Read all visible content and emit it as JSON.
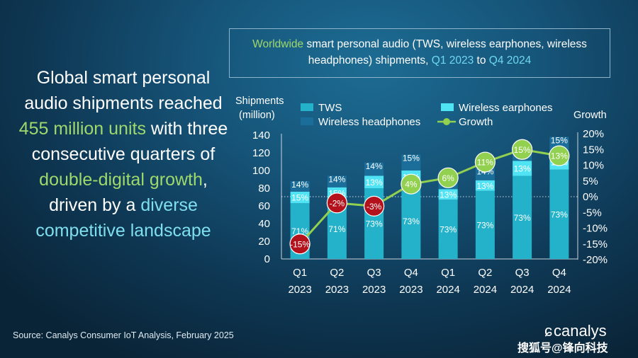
{
  "headline": {
    "p1": "Global smart personal audio shipments reached ",
    "p2": "455 million units",
    "p3": " with three consecutive quarters of ",
    "p4": "double-digital growth",
    "p5": ", driven by a ",
    "p6": "diverse competitive landscape"
  },
  "title": {
    "p1": "Worldwide",
    "p2": " smart personal audio (TWS, wireless earphones, wireless headphones) shipments, ",
    "p3": "Q1 2023",
    "p4": " to ",
    "p5": "Q4 2024"
  },
  "source": "Source: Canalys Consumer IoT Analysis, February 2025",
  "logo": "canalys",
  "watermark": "搜狐号@锋向科技",
  "colors": {
    "tws": "#23b2c9",
    "earphones": "#4fe3f3",
    "headphones": "#1b6e9a",
    "growth": "#92d050",
    "growth_negative": "#b3121c"
  },
  "chart_data": {
    "type": "bar",
    "stacked": true,
    "y_title": [
      "Shipments",
      "(million)"
    ],
    "y2_title": "Growth",
    "ylim": [
      0,
      140
    ],
    "yticks": [
      0,
      20,
      40,
      60,
      80,
      100,
      120,
      140
    ],
    "y2lim": [
      -20,
      20
    ],
    "y2ticks": [
      "-20%",
      "-15%",
      "-10%",
      "-5%",
      "0%",
      "5%",
      "10%",
      "15%",
      "20%"
    ],
    "categories": [
      [
        "Q1",
        "2023"
      ],
      [
        "Q2",
        "2023"
      ],
      [
        "Q3",
        "2023"
      ],
      [
        "Q4",
        "2023"
      ],
      [
        "Q1",
        "2024"
      ],
      [
        "Q2",
        "2024"
      ],
      [
        "Q3",
        "2024"
      ],
      [
        "Q4",
        "2024"
      ]
    ],
    "legend": {
      "tws": "TWS",
      "earphones": "Wireless earphones",
      "headphones": "Wireless headphones",
      "growth": "Growth"
    },
    "series": [
      {
        "key": "tws",
        "name": "TWS",
        "values": [
          63,
          68,
          80,
          86,
          67,
          77,
          94,
          101
        ],
        "labels": [
          "71%",
          "71%",
          "73%",
          "73%",
          "73%",
          "73%",
          "73%",
          "73%"
        ]
      },
      {
        "key": "earphones",
        "name": "Wireless earphones",
        "values": [
          13,
          13,
          14,
          14,
          12,
          12,
          17,
          17
        ],
        "labels": [
          "15%",
          "15%",
          "13%",
          "12%",
          "13%",
          "13%",
          "13%",
          "12%"
        ]
      },
      {
        "key": "headphones",
        "name": "Wireless headphones",
        "values": [
          12,
          13,
          15,
          18,
          13,
          14,
          18,
          20
        ],
        "labels": [
          "14%",
          "14%",
          "14%",
          "15%",
          "15%",
          "14%",
          "14%",
          "15%"
        ]
      }
    ],
    "growth": {
      "name": "Growth",
      "values": [
        -15,
        -2,
        -3,
        4,
        6,
        11,
        15,
        13
      ],
      "labels": [
        "-15%",
        "-2%",
        "-3%",
        "4%",
        "6%",
        "11%",
        "15%",
        "13%"
      ]
    }
  }
}
